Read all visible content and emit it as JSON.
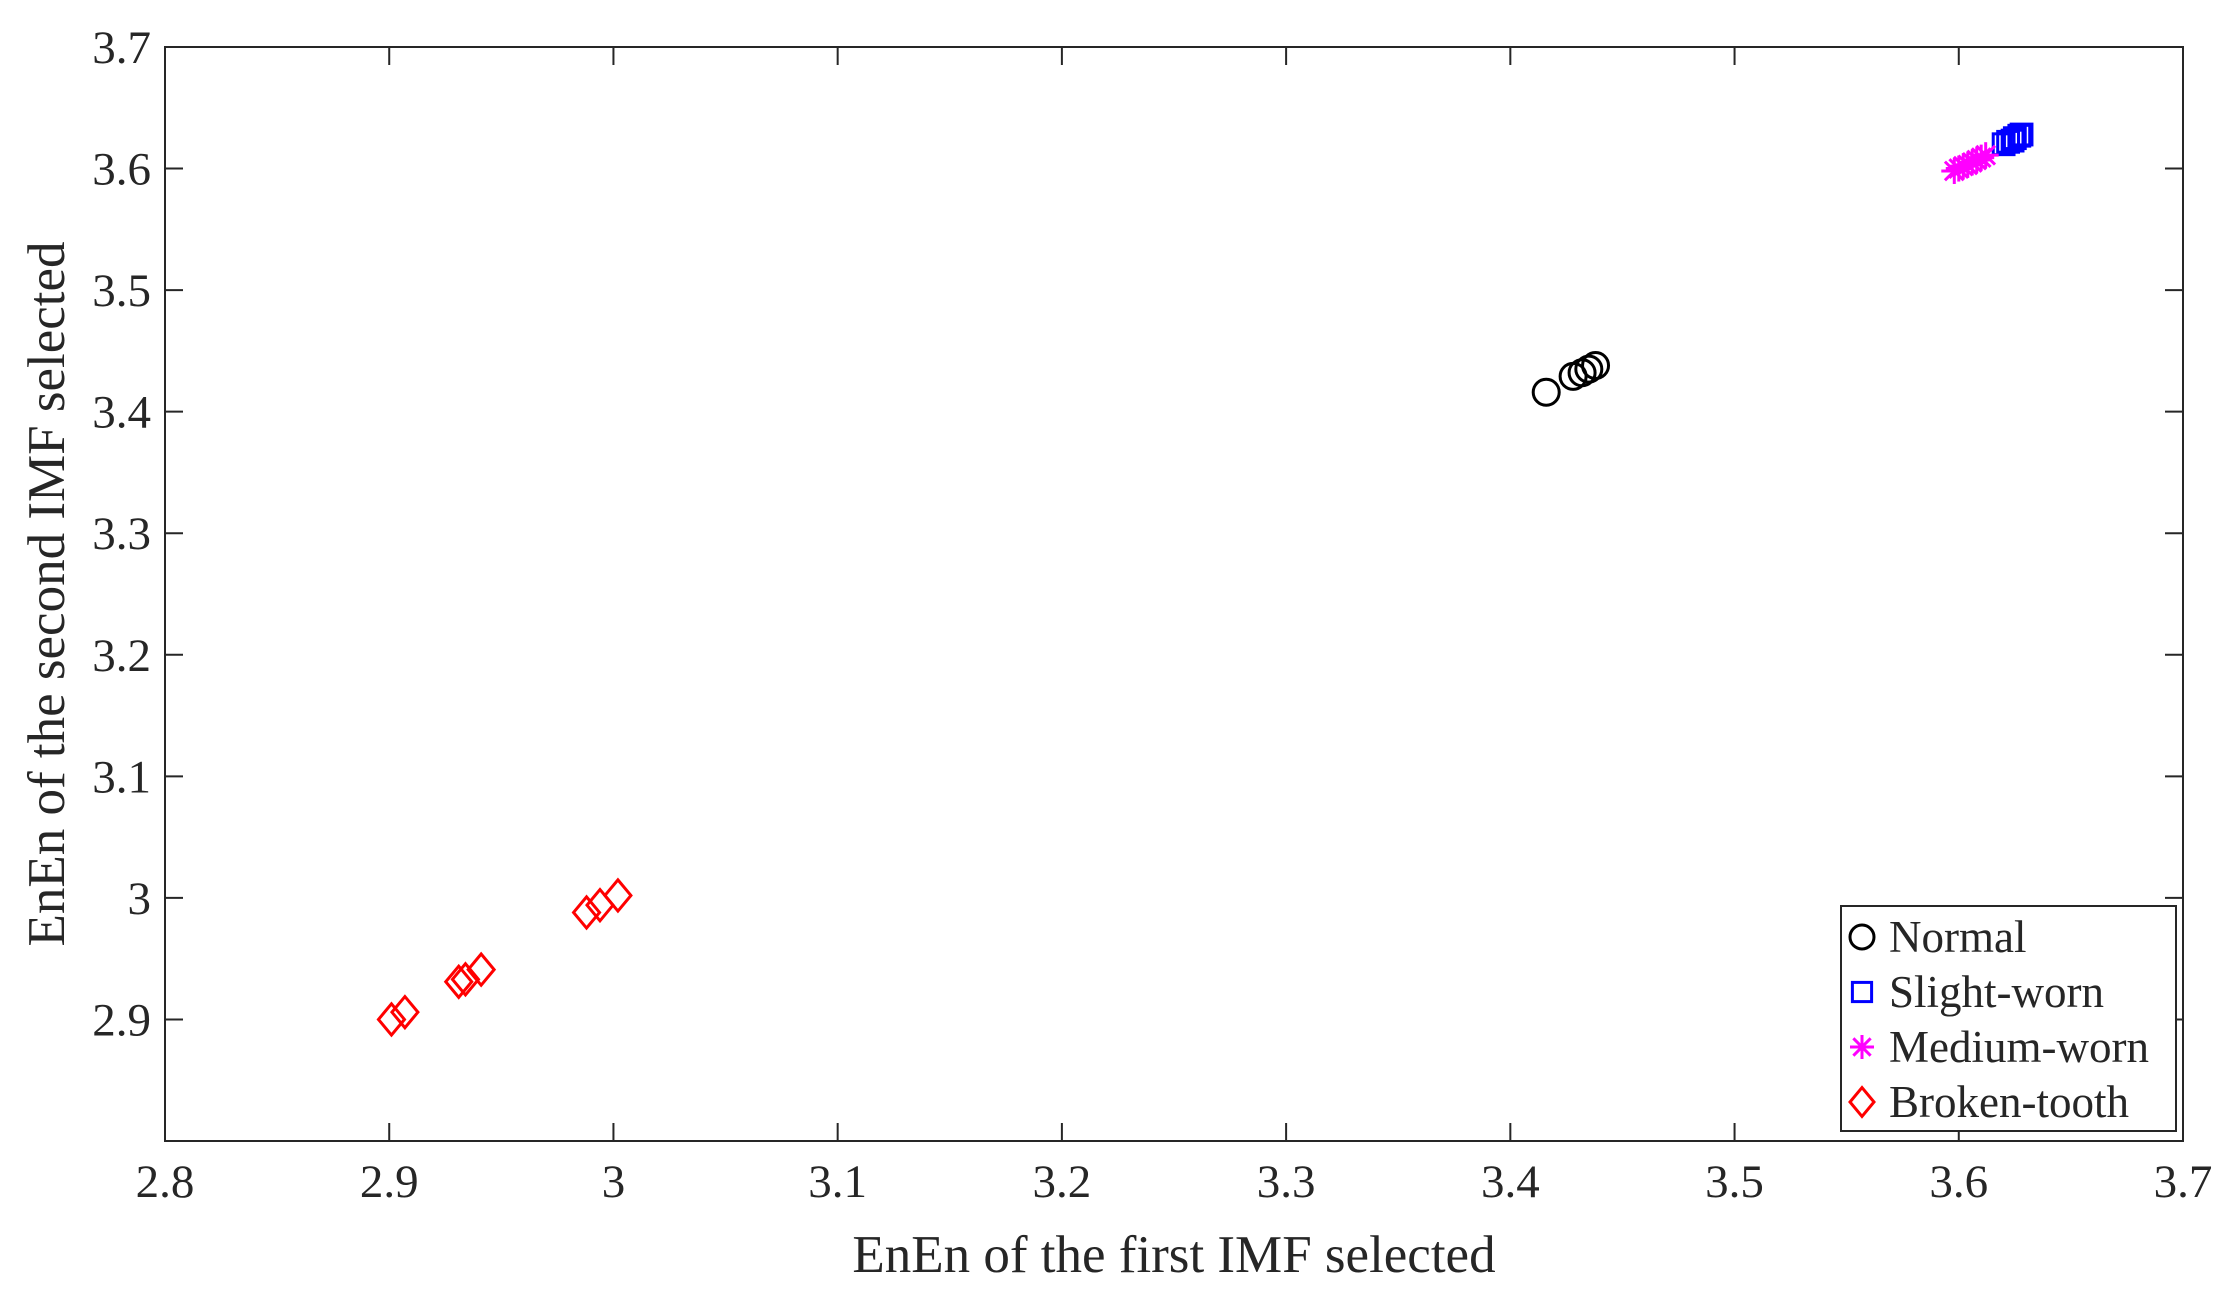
{
  "chart_data": {
    "type": "scatter",
    "title": "",
    "xlabel": "EnEn of the first IMF selected",
    "ylabel": "EnEn of the second IMF selected",
    "xlim": [
      2.8,
      3.7
    ],
    "ylim": [
      2.8,
      3.7
    ],
    "xticks": [
      "2.8",
      "2.9",
      "3",
      "3.1",
      "3.2",
      "3.3",
      "3.4",
      "3.5",
      "3.6",
      "3.7"
    ],
    "yticks": [
      "2.9",
      "3",
      "3.1",
      "3.2",
      "3.3",
      "3.4",
      "3.5",
      "3.6",
      "3.7"
    ],
    "grid": false,
    "legend_position": "bottom-right",
    "series": [
      {
        "name": "Normal",
        "marker": "circle",
        "color": "#000000",
        "points": [
          [
            3.416,
            3.416
          ],
          [
            3.428,
            3.429
          ],
          [
            3.432,
            3.432
          ],
          [
            3.435,
            3.435
          ],
          [
            3.438,
            3.438
          ]
        ]
      },
      {
        "name": "Slight-worn",
        "marker": "square",
        "color": "#0000ff",
        "points": [
          [
            3.62,
            3.62
          ],
          [
            3.622,
            3.622
          ],
          [
            3.624,
            3.623
          ],
          [
            3.625,
            3.625
          ],
          [
            3.627,
            3.627
          ],
          [
            3.628,
            3.628
          ]
        ]
      },
      {
        "name": "Medium-worn",
        "marker": "asterisk",
        "color": "#ff00ff",
        "points": [
          [
            3.598,
            3.598
          ],
          [
            3.6,
            3.6
          ],
          [
            3.602,
            3.602
          ],
          [
            3.604,
            3.603
          ],
          [
            3.606,
            3.605
          ],
          [
            3.608,
            3.607
          ],
          [
            3.61,
            3.609
          ],
          [
            3.612,
            3.611
          ]
        ]
      },
      {
        "name": "Broken-tooth",
        "marker": "diamond",
        "color": "#ff0000",
        "points": [
          [
            2.901,
            2.9
          ],
          [
            2.907,
            2.906
          ],
          [
            2.931,
            2.931
          ],
          [
            2.934,
            2.933
          ],
          [
            2.941,
            2.941
          ],
          [
            2.988,
            2.988
          ],
          [
            2.994,
            2.994
          ],
          [
            3.002,
            3.002
          ]
        ]
      }
    ]
  }
}
